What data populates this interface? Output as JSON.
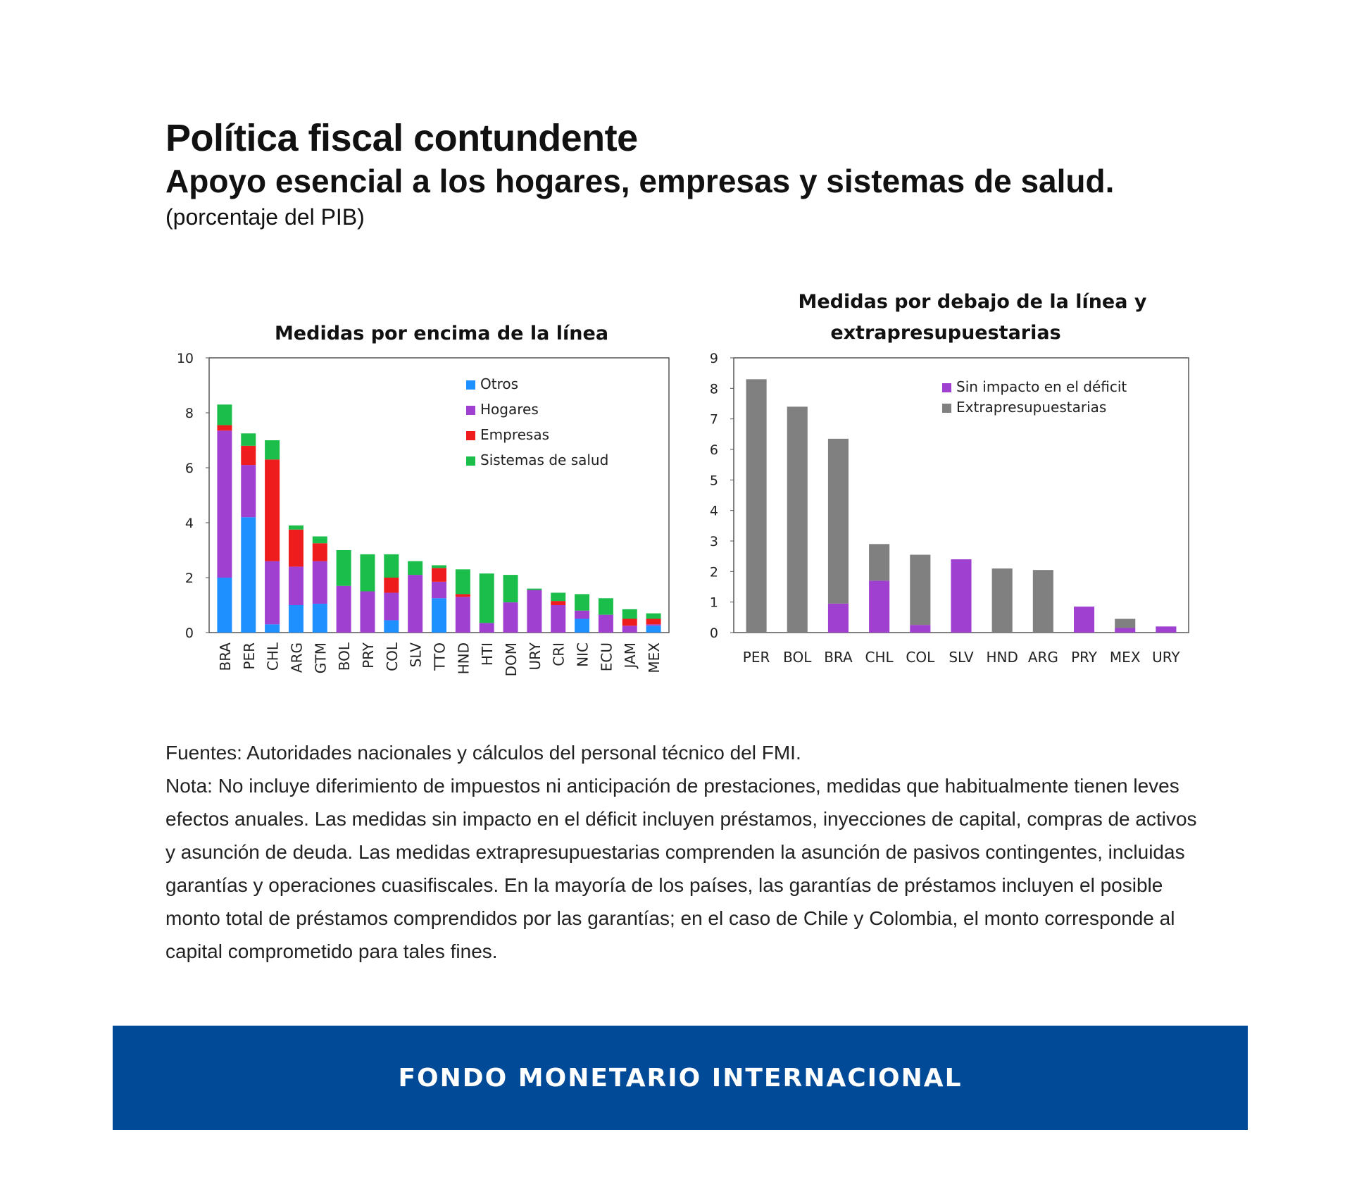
{
  "header": {
    "title": "Política fiscal contundente",
    "subtitle": "Apoyo esencial a los hogares, empresas y sistemas de salud.",
    "unit": "(porcentaje del PIB)"
  },
  "chart_data": [
    {
      "type": "bar",
      "stacked": true,
      "title": "Medidas por encima de la línea",
      "categories": [
        "BRA",
        "PER",
        "CHL",
        "ARG",
        "GTM",
        "BOL",
        "PRY",
        "COL",
        "SLV",
        "TTO",
        "HND",
        "HTI",
        "DOM",
        "URY",
        "CRI",
        "NIC",
        "ECU",
        "JAM",
        "MEX"
      ],
      "series": [
        {
          "name": "Otros",
          "color": "#1e90ff",
          "values": [
            2.0,
            4.2,
            0.3,
            1.0,
            1.05,
            0,
            0,
            0.45,
            0,
            1.25,
            0,
            0,
            0,
            0,
            0,
            0.5,
            0,
            0,
            0.25
          ]
        },
        {
          "name": "Hogares",
          "color": "#a040d0",
          "values": [
            5.35,
            1.9,
            2.3,
            1.4,
            1.55,
            1.7,
            1.5,
            1.0,
            2.1,
            0.6,
            1.3,
            0.35,
            1.1,
            1.55,
            1.0,
            0.3,
            0.65,
            0.25,
            0.05
          ]
        },
        {
          "name": "Empresas",
          "color": "#ee1c1c",
          "values": [
            0.2,
            0.7,
            3.7,
            1.35,
            0.65,
            0,
            0,
            0.55,
            0,
            0.5,
            0.1,
            0,
            0,
            0,
            0.15,
            0,
            0,
            0.25,
            0.2
          ]
        },
        {
          "name": "Sistemas de salud",
          "color": "#1bbd4b",
          "values": [
            0.75,
            0.45,
            0.7,
            0.15,
            0.25,
            1.3,
            1.35,
            0.85,
            0.5,
            0.1,
            0.9,
            1.8,
            1.0,
            0.05,
            0.3,
            0.6,
            0.6,
            0.35,
            0.2
          ]
        }
      ],
      "ylim": [
        0,
        10
      ],
      "yticks": [
        "0",
        "2",
        "4",
        "6",
        "8",
        "10"
      ],
      "legend_position": "top-right"
    },
    {
      "type": "bar",
      "stacked": true,
      "title_lines": [
        "Medidas por debajo de la línea y",
        "extrapresupuestarias"
      ],
      "categories": [
        "PER",
        "BOL",
        "BRA",
        "CHL",
        "COL",
        "SLV",
        "HND",
        "ARG",
        "PRY",
        "MEX",
        "URY"
      ],
      "series": [
        {
          "name": "Sin impacto en el déficit",
          "color": "#a040d0",
          "values": [
            0,
            0,
            0.95,
            1.7,
            0.25,
            2.4,
            0,
            0,
            0.85,
            0.15,
            0.2
          ]
        },
        {
          "name": "Extrapresupuestarias",
          "color": "#808080",
          "values": [
            8.3,
            7.4,
            5.4,
            1.2,
            2.3,
            0,
            2.1,
            2.05,
            0,
            0.3,
            0
          ]
        }
      ],
      "ylim": [
        0,
        9
      ],
      "yticks": [
        "0",
        "1",
        "2",
        "3",
        "4",
        "5",
        "6",
        "7",
        "8",
        "9"
      ],
      "legend_position": "top-right"
    }
  ],
  "notes": {
    "sources": "Fuentes: Autoridades nacionales y cálculos del personal técnico del FMI.",
    "note": "Nota: No incluye diferimiento de impuestos ni anticipación de prestaciones, medidas que habitualmente tienen leves efectos anuales. Las medidas sin impacto en el déficit incluyen préstamos, inyecciones de capital, compras de activos y asunción de deuda. Las medidas extrapresupuestarias comprenden la asunción de pasivos contingentes, incluidas garantías y operaciones cuasifiscales. En la mayoría de los países, las garantías de préstamos incluyen el posible monto total de préstamos comprendidos por las garantías; en el caso de Chile y Colombia, el monto corresponde al capital comprometido para tales fines."
  },
  "footer": {
    "banner_text": "FONDO MONETARIO INTERNACIONAL",
    "banner_color": "#004a97"
  }
}
